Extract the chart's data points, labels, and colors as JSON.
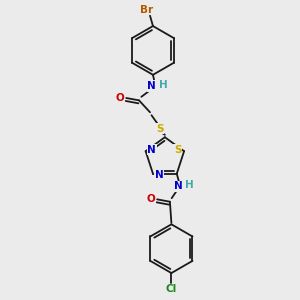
{
  "bg_color": "#ebebeb",
  "bond_color": "#1a1a1a",
  "atom_colors": {
    "Br": "#b35900",
    "Cl": "#1a8a1a",
    "N": "#0000cc",
    "O": "#cc0000",
    "S": "#ccaa00",
    "H": "#44aaaa",
    "C": "#1a1a1a"
  },
  "font_size": 7.5,
  "lw": 1.3
}
